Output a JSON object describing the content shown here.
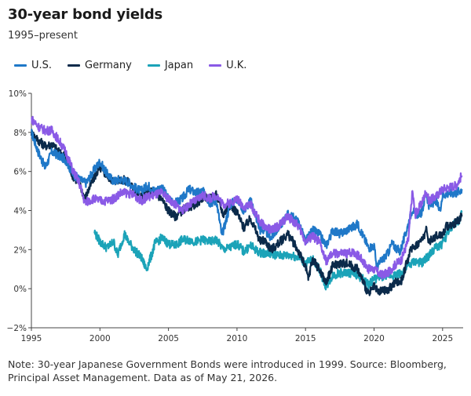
{
  "title": "30-year bond yields",
  "subtitle": "1995–present",
  "note": "Note: 30-year Japanese Government Bonds were introduced in 1999. Source: Bloomberg, Principal Asset Management. Data as of May 21, 2026.",
  "legend": [
    {
      "label": "U.S.",
      "color": "#1f78c8"
    },
    {
      "label": "Germany",
      "color": "#0b2a4a"
    },
    {
      "label": "Japan",
      "color": "#1ba3b8"
    },
    {
      "label": "U.K.",
      "color": "#8a5ae6"
    }
  ],
  "chart_data": {
    "type": "line",
    "title": "30-year bond yields",
    "subtitle": "1995–present",
    "xlabel": "",
    "ylabel": "",
    "xlim": [
      1995,
      2026.5
    ],
    "ylim": [
      -2,
      10
    ],
    "x_ticks": [
      1995,
      2000,
      2005,
      2010,
      2015,
      2020,
      2025
    ],
    "y_ticks": [
      -2,
      0,
      2,
      4,
      6,
      8,
      10
    ],
    "y_tick_labels": [
      "−2%",
      "0%",
      "2%",
      "4%",
      "6%",
      "8%",
      "10%"
    ],
    "grid": false,
    "legend_position": "top-left",
    "series": [
      {
        "name": "U.S.",
        "color": "#1f78c8",
        "points": [
          [
            1995.0,
            8.0
          ],
          [
            1995.5,
            7.0
          ],
          [
            1996.0,
            6.2
          ],
          [
            1996.5,
            7.0
          ],
          [
            1997.0,
            6.8
          ],
          [
            1997.5,
            6.6
          ],
          [
            1998.0,
            5.9
          ],
          [
            1998.5,
            5.6
          ],
          [
            1999.0,
            5.4
          ],
          [
            1999.5,
            6.0
          ],
          [
            2000.0,
            6.5
          ],
          [
            2000.5,
            5.9
          ],
          [
            2001.0,
            5.5
          ],
          [
            2001.5,
            5.6
          ],
          [
            2002.0,
            5.5
          ],
          [
            2002.5,
            5.2
          ],
          [
            2003.0,
            5.0
          ],
          [
            2003.5,
            5.3
          ],
          [
            2004.0,
            5.0
          ],
          [
            2004.5,
            5.2
          ],
          [
            2005.0,
            4.6
          ],
          [
            2005.5,
            4.4
          ],
          [
            2006.0,
            4.6
          ],
          [
            2006.5,
            5.1
          ],
          [
            2007.0,
            4.9
          ],
          [
            2007.5,
            5.0
          ],
          [
            2008.0,
            4.4
          ],
          [
            2008.5,
            4.5
          ],
          [
            2008.9,
            2.7
          ],
          [
            2009.5,
            4.3
          ],
          [
            2010.0,
            4.6
          ],
          [
            2010.5,
            4.0
          ],
          [
            2011.0,
            4.5
          ],
          [
            2011.7,
            3.0
          ],
          [
            2012.0,
            3.0
          ],
          [
            2012.5,
            2.6
          ],
          [
            2013.0,
            3.1
          ],
          [
            2013.7,
            3.8
          ],
          [
            2014.0,
            3.7
          ],
          [
            2014.5,
            3.4
          ],
          [
            2015.0,
            2.4
          ],
          [
            2015.5,
            3.0
          ],
          [
            2016.0,
            2.8
          ],
          [
            2016.5,
            2.2
          ],
          [
            2017.0,
            3.0
          ],
          [
            2017.5,
            2.8
          ],
          [
            2018.0,
            3.0
          ],
          [
            2018.8,
            3.3
          ],
          [
            2019.0,
            3.0
          ],
          [
            2019.6,
            2.1
          ],
          [
            2020.0,
            2.2
          ],
          [
            2020.2,
            1.1
          ],
          [
            2020.5,
            1.4
          ],
          [
            2021.0,
            1.8
          ],
          [
            2021.3,
            2.3
          ],
          [
            2021.9,
            1.9
          ],
          [
            2022.3,
            2.8
          ],
          [
            2022.8,
            4.1
          ],
          [
            2023.0,
            3.8
          ],
          [
            2023.5,
            3.9
          ],
          [
            2023.8,
            5.0
          ],
          [
            2024.0,
            4.2
          ],
          [
            2024.5,
            4.5
          ],
          [
            2024.8,
            4.0
          ],
          [
            2025.0,
            4.8
          ],
          [
            2025.5,
            4.9
          ],
          [
            2026.0,
            4.9
          ],
          [
            2026.4,
            5.1
          ]
        ]
      },
      {
        "name": "Germany",
        "color": "#0b2a4a",
        "points": [
          [
            1995.0,
            8.0
          ],
          [
            1995.5,
            7.6
          ],
          [
            1996.0,
            7.3
          ],
          [
            1996.5,
            7.4
          ],
          [
            1997.0,
            7.0
          ],
          [
            1997.5,
            6.8
          ],
          [
            1998.0,
            5.8
          ],
          [
            1998.5,
            5.4
          ],
          [
            1998.9,
            4.6
          ],
          [
            1999.5,
            5.6
          ],
          [
            2000.0,
            6.2
          ],
          [
            2000.5,
            5.8
          ],
          [
            2001.0,
            5.5
          ],
          [
            2001.5,
            5.6
          ],
          [
            2002.0,
            5.5
          ],
          [
            2002.5,
            5.1
          ],
          [
            2003.0,
            4.7
          ],
          [
            2003.5,
            5.0
          ],
          [
            2004.0,
            4.9
          ],
          [
            2004.5,
            4.6
          ],
          [
            2005.0,
            4.0
          ],
          [
            2005.5,
            3.7
          ],
          [
            2006.0,
            4.0
          ],
          [
            2006.5,
            4.2
          ],
          [
            2007.0,
            4.3
          ],
          [
            2007.5,
            4.7
          ],
          [
            2008.0,
            4.6
          ],
          [
            2008.5,
            4.8
          ],
          [
            2009.0,
            3.8
          ],
          [
            2009.5,
            4.3
          ],
          [
            2010.0,
            3.9
          ],
          [
            2010.5,
            3.1
          ],
          [
            2011.0,
            3.6
          ],
          [
            2011.7,
            2.4
          ],
          [
            2012.0,
            2.5
          ],
          [
            2012.5,
            2.0
          ],
          [
            2013.0,
            2.3
          ],
          [
            2013.7,
            2.8
          ],
          [
            2014.0,
            2.5
          ],
          [
            2014.5,
            1.9
          ],
          [
            2015.0,
            1.1
          ],
          [
            2015.2,
            0.5
          ],
          [
            2015.5,
            1.5
          ],
          [
            2016.0,
            1.0
          ],
          [
            2016.5,
            0.3
          ],
          [
            2017.0,
            1.2
          ],
          [
            2017.5,
            1.3
          ],
          [
            2018.0,
            1.3
          ],
          [
            2018.8,
            1.0
          ],
          [
            2019.0,
            0.7
          ],
          [
            2019.6,
            -0.3
          ],
          [
            2020.0,
            0.1
          ],
          [
            2020.3,
            -0.2
          ],
          [
            2020.6,
            -0.1
          ],
          [
            2021.0,
            -0.1
          ],
          [
            2021.5,
            0.3
          ],
          [
            2022.0,
            0.4
          ],
          [
            2022.5,
            1.6
          ],
          [
            2022.8,
            2.2
          ],
          [
            2023.0,
            2.2
          ],
          [
            2023.5,
            2.5
          ],
          [
            2023.8,
            3.0
          ],
          [
            2024.0,
            2.4
          ],
          [
            2024.5,
            2.7
          ],
          [
            2025.0,
            2.8
          ],
          [
            2025.3,
            3.2
          ],
          [
            2025.8,
            3.3
          ],
          [
            2026.0,
            3.4
          ],
          [
            2026.4,
            3.7
          ]
        ]
      },
      {
        "name": "Japan",
        "color": "#1ba3b8",
        "points": [
          [
            1999.6,
            2.9
          ],
          [
            2000.0,
            2.4
          ],
          [
            2000.5,
            2.1
          ],
          [
            2001.0,
            2.4
          ],
          [
            2001.3,
            1.7
          ],
          [
            2001.5,
            2.2
          ],
          [
            2001.8,
            2.8
          ],
          [
            2002.0,
            2.5
          ],
          [
            2002.5,
            2.0
          ],
          [
            2003.0,
            1.6
          ],
          [
            2003.4,
            1.0
          ],
          [
            2003.8,
            1.8
          ],
          [
            2004.0,
            2.3
          ],
          [
            2004.5,
            2.6
          ],
          [
            2005.0,
            2.3
          ],
          [
            2005.5,
            2.2
          ],
          [
            2006.0,
            2.5
          ],
          [
            2006.5,
            2.5
          ],
          [
            2007.0,
            2.4
          ],
          [
            2007.5,
            2.5
          ],
          [
            2008.0,
            2.4
          ],
          [
            2008.5,
            2.5
          ],
          [
            2009.0,
            2.0
          ],
          [
            2009.5,
            2.1
          ],
          [
            2010.0,
            2.3
          ],
          [
            2010.5,
            1.9
          ],
          [
            2011.0,
            2.2
          ],
          [
            2011.5,
            1.9
          ],
          [
            2012.0,
            1.8
          ],
          [
            2012.5,
            1.8
          ],
          [
            2013.0,
            1.7
          ],
          [
            2013.5,
            1.7
          ],
          [
            2014.0,
            1.7
          ],
          [
            2014.5,
            1.6
          ],
          [
            2015.0,
            1.3
          ],
          [
            2015.5,
            1.5
          ],
          [
            2016.0,
            1.0
          ],
          [
            2016.5,
            0.1
          ],
          [
            2017.0,
            0.7
          ],
          [
            2017.5,
            0.8
          ],
          [
            2018.0,
            0.8
          ],
          [
            2018.5,
            0.8
          ],
          [
            2019.0,
            0.6
          ],
          [
            2019.6,
            0.2
          ],
          [
            2020.0,
            0.5
          ],
          [
            2020.5,
            0.6
          ],
          [
            2021.0,
            0.7
          ],
          [
            2021.5,
            0.7
          ],
          [
            2022.0,
            0.8
          ],
          [
            2022.5,
            1.2
          ],
          [
            2023.0,
            1.4
          ],
          [
            2023.5,
            1.3
          ],
          [
            2024.0,
            1.7
          ],
          [
            2024.5,
            2.1
          ],
          [
            2025.0,
            2.3
          ],
          [
            2025.4,
            2.9
          ],
          [
            2025.8,
            3.3
          ],
          [
            2026.2,
            3.5
          ],
          [
            2026.4,
            3.9
          ]
        ]
      },
      {
        "name": "U.K.",
        "color": "#8a5ae6",
        "points": [
          [
            1995.0,
            8.7
          ],
          [
            1995.5,
            8.3
          ],
          [
            1996.0,
            8.1
          ],
          [
            1996.5,
            8.1
          ],
          [
            1997.0,
            7.6
          ],
          [
            1997.5,
            7.0
          ],
          [
            1998.0,
            6.1
          ],
          [
            1998.5,
            5.4
          ],
          [
            1998.9,
            4.4
          ],
          [
            1999.5,
            4.6
          ],
          [
            2000.0,
            4.5
          ],
          [
            2000.5,
            4.5
          ],
          [
            2001.0,
            4.6
          ],
          [
            2001.5,
            4.9
          ],
          [
            2002.0,
            4.9
          ],
          [
            2002.5,
            4.8
          ],
          [
            2003.0,
            4.5
          ],
          [
            2003.5,
            4.7
          ],
          [
            2004.0,
            4.8
          ],
          [
            2004.5,
            4.9
          ],
          [
            2005.0,
            4.6
          ],
          [
            2005.5,
            4.3
          ],
          [
            2006.0,
            4.0
          ],
          [
            2006.5,
            4.3
          ],
          [
            2007.0,
            4.5
          ],
          [
            2007.5,
            4.8
          ],
          [
            2008.0,
            4.6
          ],
          [
            2008.5,
            4.8
          ],
          [
            2009.0,
            4.3
          ],
          [
            2009.5,
            4.4
          ],
          [
            2010.0,
            4.6
          ],
          [
            2010.5,
            4.2
          ],
          [
            2011.0,
            4.3
          ],
          [
            2011.7,
            3.4
          ],
          [
            2012.0,
            3.2
          ],
          [
            2012.5,
            3.0
          ],
          [
            2013.0,
            3.2
          ],
          [
            2013.7,
            3.7
          ],
          [
            2014.0,
            3.5
          ],
          [
            2014.5,
            3.2
          ],
          [
            2015.0,
            2.4
          ],
          [
            2015.5,
            2.7
          ],
          [
            2016.0,
            2.4
          ],
          [
            2016.5,
            1.4
          ],
          [
            2017.0,
            1.8
          ],
          [
            2017.5,
            1.8
          ],
          [
            2018.0,
            1.8
          ],
          [
            2018.5,
            1.9
          ],
          [
            2019.0,
            1.6
          ],
          [
            2019.6,
            1.0
          ],
          [
            2020.0,
            1.0
          ],
          [
            2020.5,
            0.7
          ],
          [
            2021.0,
            0.8
          ],
          [
            2021.5,
            1.2
          ],
          [
            2022.0,
            1.5
          ],
          [
            2022.5,
            2.5
          ],
          [
            2022.8,
            5.0
          ],
          [
            2023.0,
            3.8
          ],
          [
            2023.5,
            4.4
          ],
          [
            2023.8,
            5.0
          ],
          [
            2024.0,
            4.5
          ],
          [
            2024.5,
            4.7
          ],
          [
            2025.0,
            5.1
          ],
          [
            2025.5,
            5.2
          ],
          [
            2026.0,
            5.3
          ],
          [
            2026.4,
            5.8
          ]
        ]
      }
    ]
  }
}
